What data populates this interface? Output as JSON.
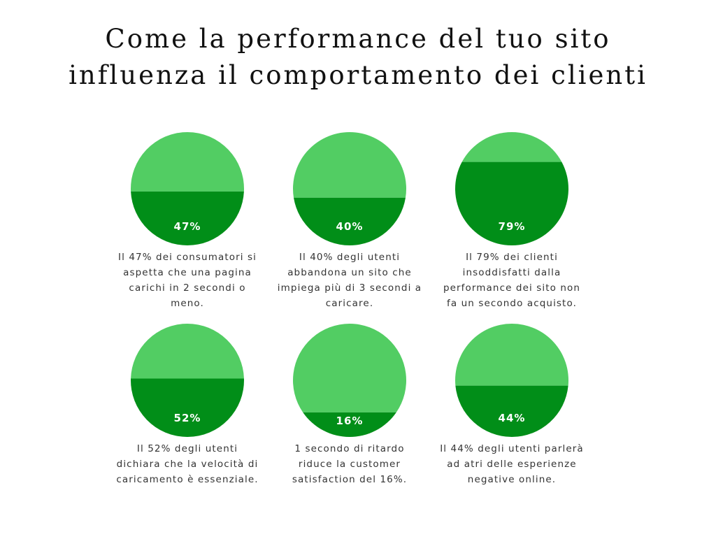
{
  "title": [
    "Come la performance del tuo sito",
    "influenza il comportamento dei clienti"
  ],
  "colors": {
    "light": "#52cd63",
    "dark": "#018e18",
    "label": "#ffffff"
  },
  "chart_data": [
    {
      "type": "pie",
      "values": [
        47,
        53
      ],
      "label": "47%",
      "caption": "Il 47% dei consumatori si\naspetta che una pagina\ncarichi in 2 secondi o\nmeno."
    },
    {
      "type": "pie",
      "values": [
        40,
        60
      ],
      "label": "40%",
      "caption": "Il 40% degli utenti\nabbandona un sito che\nimpiega più di 3 secondi a\ncaricare."
    },
    {
      "type": "pie",
      "values": [
        79,
        21
      ],
      "label": "79%",
      "caption": "Il 79% dei clienti\ninsoddisfatti dalla\nperformance dei sito non\nfa un secondo acquisto."
    },
    {
      "type": "pie",
      "values": [
        52,
        48
      ],
      "label": "52%",
      "caption": "Il 52% degli utenti\ndichiara che la velocità di\ncaricamento è essenziale."
    },
    {
      "type": "pie",
      "values": [
        16,
        84
      ],
      "label": "16%",
      "caption": "1 secondo di ritardo\nriduce la customer\nsatisfaction del 16%."
    },
    {
      "type": "pie",
      "values": [
        44,
        56
      ],
      "label": "44%",
      "caption": "Il 44% degli utenti parlerà\nad atri delle esperienze\nnegative online."
    }
  ]
}
